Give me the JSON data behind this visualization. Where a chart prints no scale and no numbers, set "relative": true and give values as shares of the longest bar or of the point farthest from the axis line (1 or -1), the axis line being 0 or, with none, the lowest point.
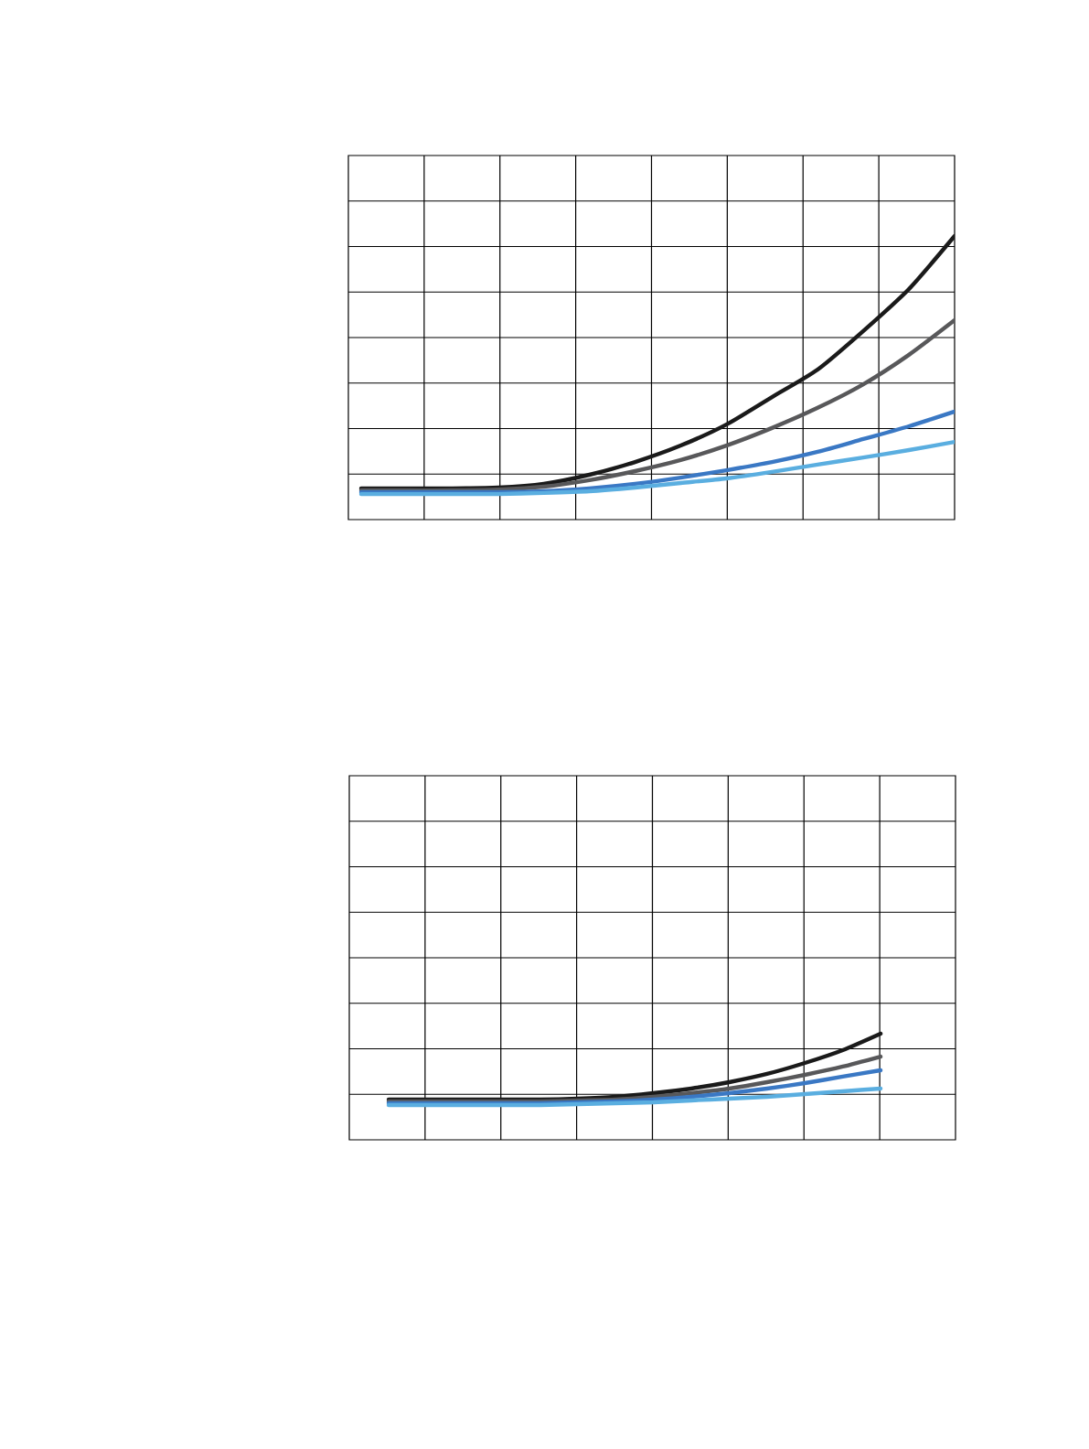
{
  "chart_data": [
    {
      "type": "line",
      "relative": true,
      "grid": true,
      "categories": [
        null,
        null,
        null,
        null,
        null,
        null,
        null,
        null,
        null,
        null,
        null,
        null,
        null,
        null
      ],
      "series": [
        {
          "color": "#1a1a1a",
          "values": [
            0.11,
            0.11,
            0.11,
            0.113,
            0.126,
            0.158,
            0.203,
            0.261,
            0.335,
            0.432,
            0.529,
            0.665,
            0.813,
            1
          ]
        },
        {
          "color": "#58585a",
          "values": [
            0.103,
            0.103,
            0.103,
            0.106,
            0.116,
            0.139,
            0.171,
            0.21,
            0.261,
            0.323,
            0.394,
            0.477,
            0.581,
            0.703
          ]
        },
        {
          "color": "#3a78c4",
          "values": [
            0.097,
            0.097,
            0.097,
            0.097,
            0.1,
            0.11,
            0.126,
            0.148,
            0.174,
            0.203,
            0.239,
            0.284,
            0.329,
            0.381
          ]
        },
        {
          "color": "#5aaee0",
          "values": [
            0.09,
            0.09,
            0.09,
            0.09,
            0.094,
            0.1,
            0.113,
            0.129,
            0.145,
            0.168,
            0.194,
            0.219,
            0.245,
            0.274
          ]
        }
      ]
    },
    {
      "type": "line",
      "relative": true,
      "grid": true,
      "categories": [
        null,
        null,
        null,
        null,
        null,
        null,
        null,
        null,
        null,
        null,
        null,
        null,
        null,
        null
      ],
      "series": [
        {
          "color": "#1a1a1a",
          "values": [
            0.379,
            0.379,
            0.379,
            0.379,
            0.379,
            0.388,
            0.405,
            0.44,
            0.483,
            0.543,
            0.621,
            0.724,
            0.845,
            1
          ]
        },
        {
          "color": "#58585a",
          "values": [
            0.362,
            0.362,
            0.362,
            0.362,
            0.362,
            0.371,
            0.379,
            0.405,
            0.44,
            0.483,
            0.543,
            0.612,
            0.69,
            0.784
          ]
        },
        {
          "color": "#3a78c4",
          "values": [
            0.345,
            0.345,
            0.345,
            0.345,
            0.345,
            0.353,
            0.362,
            0.379,
            0.405,
            0.44,
            0.483,
            0.534,
            0.595,
            0.655
          ]
        },
        {
          "color": "#5aaee0",
          "values": [
            0.328,
            0.328,
            0.328,
            0.328,
            0.328,
            0.336,
            0.345,
            0.353,
            0.371,
            0.388,
            0.405,
            0.431,
            0.457,
            0.483
          ]
        }
      ]
    }
  ]
}
